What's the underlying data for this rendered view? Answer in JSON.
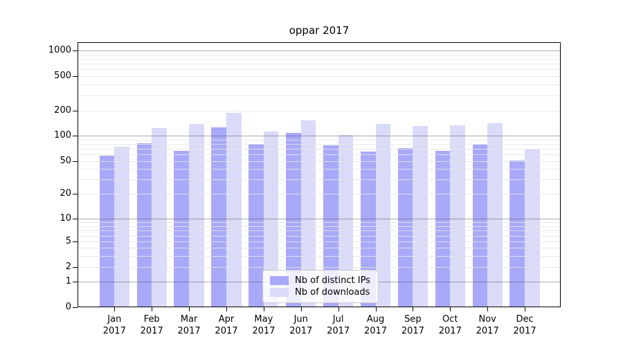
{
  "chart_data": {
    "type": "bar",
    "title": "oppar 2017",
    "categories": [
      "Jan",
      "Feb",
      "Mar",
      "Apr",
      "May",
      "Jun",
      "Jul",
      "Aug",
      "Sep",
      "Oct",
      "Nov",
      "Dec"
    ],
    "category_year": "2017",
    "series": [
      {
        "name": "Nb of distinct IPs",
        "color": "#a9a9f9",
        "values": [
          58,
          82,
          66,
          126,
          79,
          107,
          77,
          65,
          71,
          66,
          78,
          51
        ]
      },
      {
        "name": "Nb of downloads",
        "color": "#dadaf9",
        "values": [
          74,
          124,
          138,
          188,
          112,
          153,
          101,
          138,
          131,
          134,
          141,
          69
        ]
      }
    ],
    "y_ticks": [
      0,
      1,
      2,
      5,
      10,
      20,
      50,
      100,
      200,
      500,
      1000
    ],
    "y_scale": "symlog",
    "ylim": [
      0,
      1260
    ],
    "grid": true,
    "legend_position": "lower center",
    "colors": {
      "background": "#ffffff",
      "axis": "#000000",
      "major_grid": "#b0b0b0",
      "minor_grid": "#e5e5e5",
      "text": "#000000"
    }
  }
}
